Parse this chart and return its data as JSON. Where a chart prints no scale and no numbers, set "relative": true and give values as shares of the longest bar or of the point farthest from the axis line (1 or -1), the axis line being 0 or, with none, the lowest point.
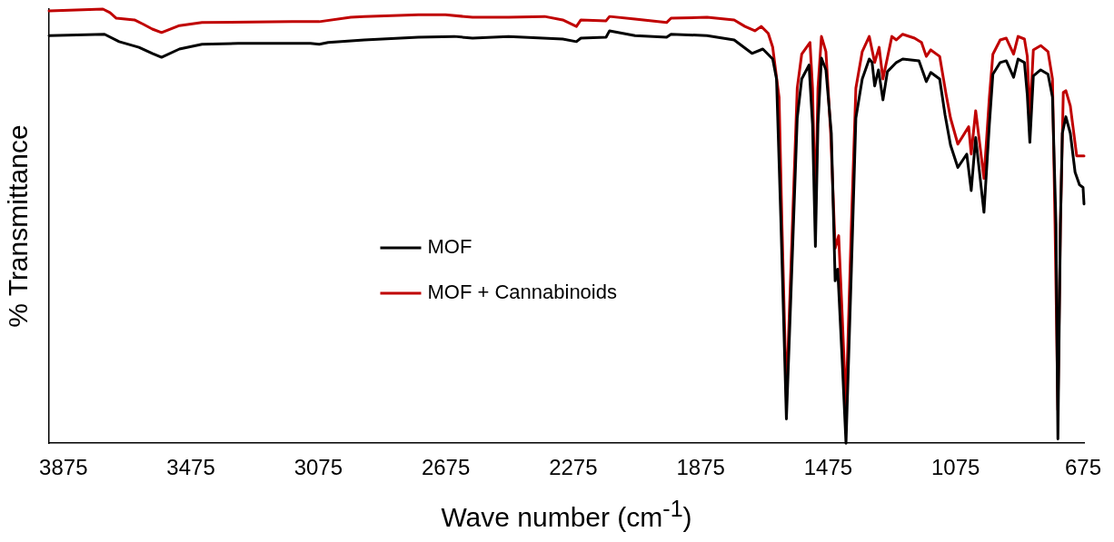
{
  "chart_data": {
    "type": "line",
    "relative": true,
    "xlabel": "Wave number (cm$^{-1}$)",
    "ylabel": "% Transmittance",
    "xlim": [
      3920,
      672
    ],
    "xticks": [
      3875,
      3475,
      3075,
      2675,
      2275,
      1875,
      1475,
      1075,
      675
    ],
    "grid": false,
    "legend": "left",
    "marker": "none",
    "line_style": "solid",
    "series": [
      {
        "name": "MOF",
        "color": "#000000",
        "x": [
          3920,
          3746,
          3700,
          3638,
          3596,
          3567,
          3511,
          3440,
          3327,
          3100,
          3072,
          3044,
          2931,
          2761,
          2648,
          2591,
          2478,
          2308,
          2265,
          2251,
          2172,
          2161,
          2081,
          1982,
          1968,
          1855,
          1770,
          1714,
          1680,
          1649,
          1637,
          1623,
          1606,
          1592,
          1572,
          1558,
          1535,
          1524,
          1515,
          1507,
          1496,
          1482,
          1465,
          1453,
          1445,
          1431,
          1419,
          1402,
          1388,
          1368,
          1346,
          1337,
          1329,
          1317,
          1303,
          1289,
          1261,
          1241,
          1190,
          1167,
          1153,
          1125,
          1108,
          1091,
          1068,
          1040,
          1026,
          1012,
          986,
          969,
          958,
          935,
          916,
          893,
          879,
          859,
          850,
          842,
          831,
          808,
          785,
          771,
          760,
          754,
          746,
          740,
          729,
          715,
          700,
          686,
          675,
          672
        ],
        "values": [
          0.939,
          0.942,
          0.925,
          0.912,
          0.898,
          0.889,
          0.908,
          0.919,
          0.921,
          0.921,
          0.919,
          0.923,
          0.929,
          0.935,
          0.937,
          0.933,
          0.937,
          0.931,
          0.925,
          0.933,
          0.935,
          0.95,
          0.939,
          0.935,
          0.942,
          0.939,
          0.929,
          0.898,
          0.908,
          0.885,
          0.839,
          0.505,
          0.056,
          0.338,
          0.749,
          0.839,
          0.871,
          0.735,
          0.453,
          0.735,
          0.887,
          0.86,
          0.714,
          0.374,
          0.401,
          0.192,
          0,
          0.401,
          0.749,
          0.839,
          0.885,
          0.877,
          0.823,
          0.86,
          0.791,
          0.856,
          0.877,
          0.885,
          0.881,
          0.833,
          0.854,
          0.839,
          0.756,
          0.687,
          0.635,
          0.666,
          0.582,
          0.704,
          0.532,
          0.735,
          0.85,
          0.877,
          0.881,
          0.843,
          0.885,
          0.877,
          0.802,
          0.693,
          0.846,
          0.86,
          0.85,
          0.797,
          0.505,
          0.01,
          0.505,
          0.714,
          0.752,
          0.714,
          0.624,
          0.595,
          0.589,
          0.551
        ]
      },
      {
        "name": "MOF + Cannabinoids",
        "color": "#c00000",
        "x": [
          3920,
          3751,
          3729,
          3709,
          3652,
          3624,
          3596,
          3567,
          3511,
          3440,
          3157,
          3072,
          2973,
          2931,
          2761,
          2676,
          2591,
          2478,
          2365,
          2308,
          2265,
          2251,
          2172,
          2161,
          2081,
          1982,
          1968,
          1855,
          1770,
          1736,
          1705,
          1685,
          1663,
          1649,
          1629,
          1620,
          1606,
          1592,
          1572,
          1558,
          1532,
          1524,
          1515,
          1507,
          1496,
          1482,
          1467,
          1453,
          1442,
          1431,
          1419,
          1402,
          1388,
          1368,
          1346,
          1329,
          1315,
          1303,
          1275,
          1261,
          1241,
          1204,
          1182,
          1167,
          1153,
          1125,
          1105,
          1091,
          1068,
          1034,
          1026,
          1012,
          986,
          969,
          958,
          935,
          916,
          893,
          879,
          859,
          850,
          842,
          831,
          808,
          785,
          771,
          763,
          754,
          746,
          737,
          729,
          715,
          695,
          675,
          672
        ],
        "values": [
          0.996,
          1,
          0.992,
          0.979,
          0.975,
          0.965,
          0.954,
          0.946,
          0.962,
          0.969,
          0.971,
          0.971,
          0.981,
          0.983,
          0.987,
          0.987,
          0.981,
          0.981,
          0.983,
          0.975,
          0.96,
          0.975,
          0.973,
          0.983,
          0.977,
          0.969,
          0.979,
          0.981,
          0.975,
          0.96,
          0.95,
          0.96,
          0.944,
          0.912,
          0.797,
          0.505,
          0.104,
          0.401,
          0.818,
          0.896,
          0.923,
          0.818,
          0.53,
          0.818,
          0.937,
          0.902,
          0.714,
          0.449,
          0.478,
          0.296,
          0.081,
          0.505,
          0.818,
          0.902,
          0.937,
          0.877,
          0.912,
          0.839,
          0.937,
          0.929,
          0.942,
          0.933,
          0.923,
          0.891,
          0.906,
          0.891,
          0.804,
          0.749,
          0.689,
          0.729,
          0.666,
          0.766,
          0.61,
          0.797,
          0.896,
          0.929,
          0.933,
          0.896,
          0.937,
          0.931,
          0.891,
          0.749,
          0.906,
          0.916,
          0.902,
          0.839,
          0.505,
          0.077,
          0.505,
          0.808,
          0.812,
          0.777,
          0.662,
          0.662,
          0.662
        ]
      }
    ]
  }
}
